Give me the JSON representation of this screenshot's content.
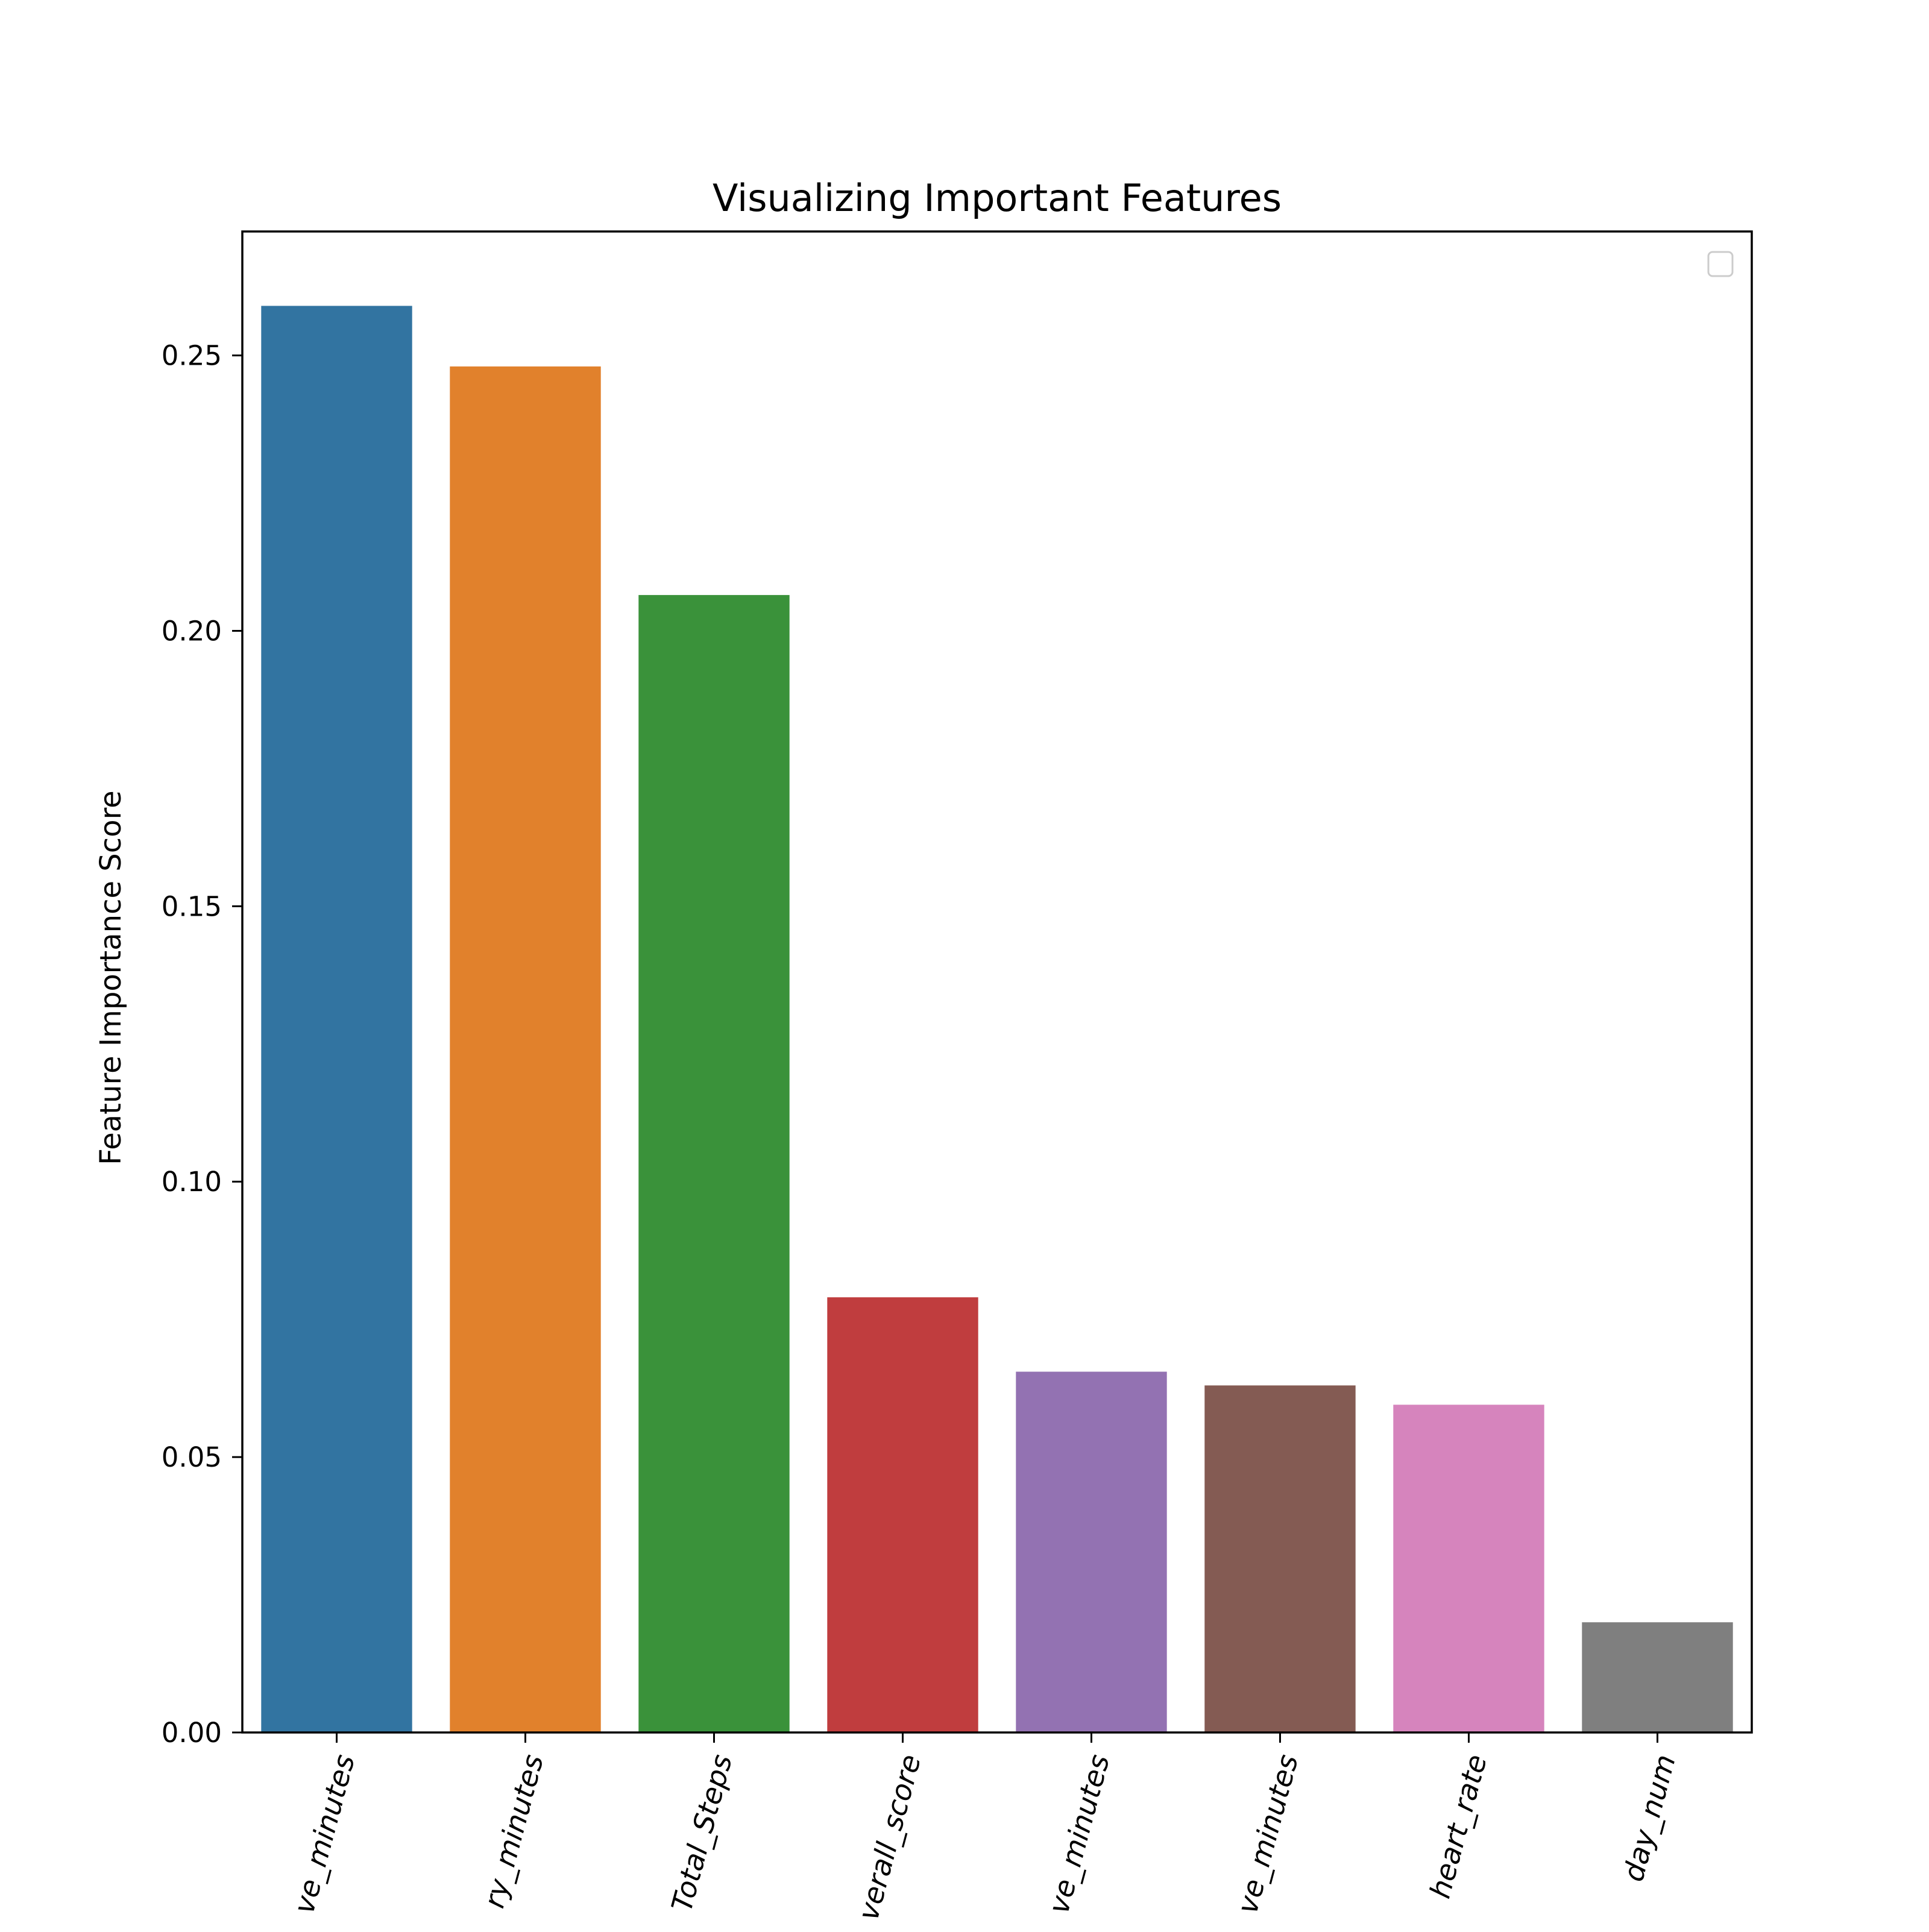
{
  "chart_data": {
    "type": "bar",
    "title": "Visualizing Important Features",
    "xlabel": "",
    "ylabel": "Feature Importance Score",
    "categories": [
      "ve_minutes",
      "ry_minutes",
      "Total_Steps",
      "verall_score",
      "ve_minutes",
      "ve_minutes",
      "heart_rate",
      "day_num"
    ],
    "values": [
      0.259,
      0.248,
      0.2065,
      0.079,
      0.0655,
      0.063,
      0.0595,
      0.02
    ],
    "colors": [
      "#3274a1",
      "#e1812c",
      "#3a923a",
      "#c03d3e",
      "#9372b2",
      "#845b53",
      "#d684bd",
      "#7f7f7f"
    ],
    "ylim": [
      0,
      0.2725
    ],
    "yticks": [
      0.0,
      0.05,
      0.1,
      0.15,
      0.2,
      0.25
    ],
    "ytick_labels": [
      "0.00",
      "0.05",
      "0.10",
      "0.15",
      "0.20",
      "0.25"
    ],
    "grid": false,
    "legend": "upper right (empty)"
  }
}
